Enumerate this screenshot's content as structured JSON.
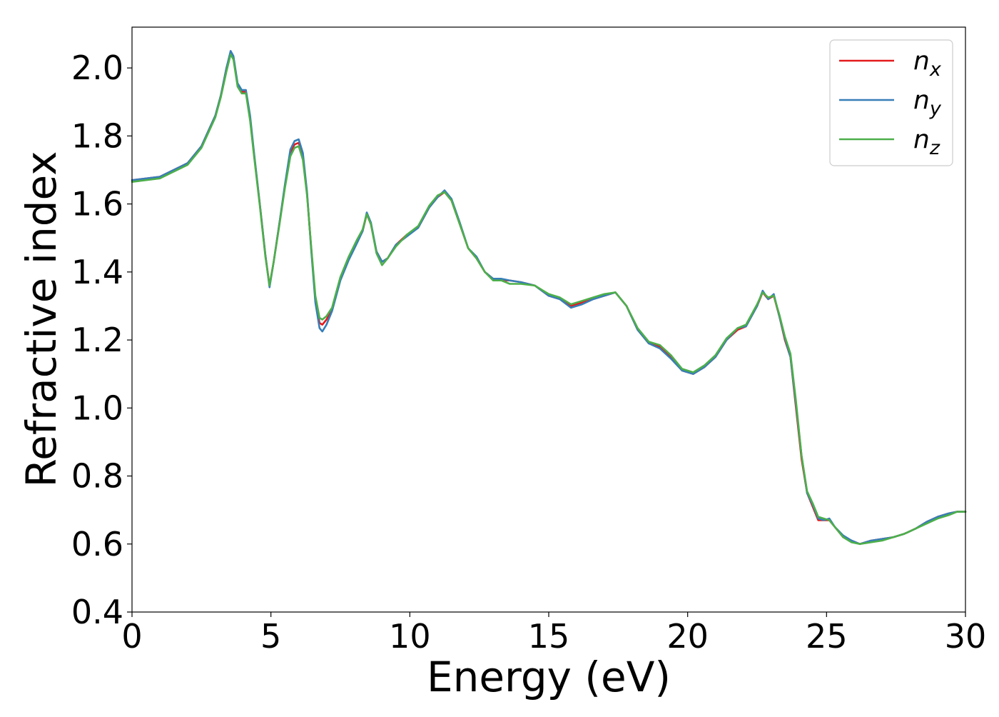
{
  "chart_data": {
    "type": "line",
    "title": "",
    "xlabel": "Energy (eV)",
    "ylabel": "Refractive index",
    "xlim": [
      0,
      30
    ],
    "ylim": [
      0.4,
      2.12
    ],
    "xticks": [
      0,
      5,
      10,
      15,
      20,
      25,
      30
    ],
    "xtick_labels": [
      "0",
      "5",
      "10",
      "15",
      "20",
      "25",
      "30"
    ],
    "yticks": [
      0.4,
      0.6,
      0.8,
      1.0,
      1.2,
      1.4,
      1.6,
      1.8,
      2.0
    ],
    "ytick_labels": [
      "0.4",
      "0.6",
      "0.8",
      "1.0",
      "1.2",
      "1.4",
      "1.6",
      "1.8",
      "2.0"
    ],
    "grid": false,
    "legend_position": "top-right",
    "series": [
      {
        "name": "n_x",
        "label_base": "n",
        "label_sub": "x",
        "color": "#e41a1c",
        "x": [
          0,
          1,
          2,
          2.5,
          3,
          3.2,
          3.4,
          3.55,
          3.65,
          3.8,
          3.95,
          4.1,
          4.25,
          4.4,
          4.6,
          4.8,
          4.95,
          5.1,
          5.3,
          5.5,
          5.7,
          5.85,
          6.0,
          6.15,
          6.3,
          6.45,
          6.6,
          6.75,
          6.85,
          7.0,
          7.2,
          7.5,
          7.8,
          8.1,
          8.3,
          8.45,
          8.6,
          8.8,
          9.0,
          9.2,
          9.5,
          9.9,
          10.3,
          10.7,
          11.0,
          11.25,
          11.5,
          11.8,
          12.1,
          12.4,
          12.7,
          13.0,
          13.3,
          13.6,
          14.0,
          14.5,
          15.0,
          15.4,
          15.8,
          16.2,
          16.6,
          17.0,
          17.4,
          17.8,
          18.2,
          18.6,
          19.0,
          19.4,
          19.8,
          20.2,
          20.6,
          21.0,
          21.4,
          21.8,
          22.1,
          22.3,
          22.5,
          22.7,
          22.9,
          23.1,
          23.3,
          23.5,
          23.7,
          23.9,
          24.1,
          24.3,
          24.5,
          24.7,
          24.9,
          25.1,
          25.3,
          25.6,
          25.9,
          26.2,
          26.6,
          27.0,
          27.4,
          27.8,
          28.2,
          28.6,
          29.0,
          29.4,
          29.7,
          30.0
        ],
        "y": [
          1.67,
          1.68,
          1.72,
          1.77,
          1.86,
          1.92,
          2.0,
          2.045,
          2.03,
          1.95,
          1.93,
          1.93,
          1.85,
          1.74,
          1.6,
          1.45,
          1.36,
          1.43,
          1.54,
          1.65,
          1.75,
          1.775,
          1.78,
          1.74,
          1.63,
          1.47,
          1.32,
          1.25,
          1.245,
          1.26,
          1.29,
          1.38,
          1.44,
          1.49,
          1.52,
          1.57,
          1.54,
          1.46,
          1.43,
          1.44,
          1.48,
          1.51,
          1.53,
          1.59,
          1.62,
          1.635,
          1.61,
          1.54,
          1.47,
          1.44,
          1.4,
          1.38,
          1.375,
          1.375,
          1.37,
          1.36,
          1.33,
          1.32,
          1.3,
          1.31,
          1.32,
          1.33,
          1.34,
          1.3,
          1.23,
          1.19,
          1.18,
          1.15,
          1.11,
          1.1,
          1.12,
          1.15,
          1.2,
          1.23,
          1.24,
          1.27,
          1.3,
          1.34,
          1.32,
          1.33,
          1.27,
          1.2,
          1.15,
          1.0,
          0.85,
          0.75,
          0.71,
          0.67,
          0.67,
          0.67,
          0.65,
          0.62,
          0.61,
          0.6,
          0.61,
          0.615,
          0.62,
          0.63,
          0.645,
          0.665,
          0.68,
          0.69,
          0.695,
          0.695
        ]
      },
      {
        "name": "n_y",
        "label_base": "n",
        "label_sub": "y",
        "color": "#377eb8",
        "x": [
          0,
          1,
          2,
          2.5,
          3,
          3.2,
          3.4,
          3.55,
          3.65,
          3.8,
          3.95,
          4.1,
          4.25,
          4.4,
          4.6,
          4.8,
          4.95,
          5.1,
          5.3,
          5.5,
          5.7,
          5.85,
          6.0,
          6.15,
          6.3,
          6.45,
          6.6,
          6.75,
          6.85,
          7.0,
          7.2,
          7.5,
          7.8,
          8.1,
          8.3,
          8.45,
          8.6,
          8.8,
          9.0,
          9.2,
          9.5,
          9.9,
          10.3,
          10.7,
          11.0,
          11.25,
          11.5,
          11.8,
          12.1,
          12.4,
          12.7,
          13.0,
          13.3,
          13.6,
          14.0,
          14.5,
          15.0,
          15.4,
          15.8,
          16.2,
          16.6,
          17.0,
          17.4,
          17.8,
          18.2,
          18.6,
          19.0,
          19.4,
          19.8,
          20.2,
          20.6,
          21.0,
          21.4,
          21.8,
          22.1,
          22.3,
          22.5,
          22.7,
          22.9,
          23.1,
          23.3,
          23.5,
          23.7,
          23.9,
          24.1,
          24.3,
          24.5,
          24.7,
          24.9,
          25.1,
          25.3,
          25.6,
          25.9,
          26.2,
          26.6,
          27.0,
          27.4,
          27.8,
          28.2,
          28.6,
          29.0,
          29.4,
          29.7,
          30.0
        ],
        "y": [
          1.67,
          1.68,
          1.72,
          1.77,
          1.86,
          1.92,
          2.0,
          2.05,
          2.035,
          1.955,
          1.935,
          1.935,
          1.86,
          1.745,
          1.6,
          1.45,
          1.355,
          1.43,
          1.54,
          1.655,
          1.76,
          1.785,
          1.79,
          1.75,
          1.635,
          1.465,
          1.31,
          1.235,
          1.225,
          1.245,
          1.285,
          1.375,
          1.435,
          1.485,
          1.52,
          1.575,
          1.545,
          1.46,
          1.43,
          1.44,
          1.48,
          1.505,
          1.53,
          1.59,
          1.62,
          1.64,
          1.615,
          1.545,
          1.47,
          1.445,
          1.4,
          1.38,
          1.38,
          1.375,
          1.37,
          1.36,
          1.33,
          1.32,
          1.295,
          1.305,
          1.32,
          1.33,
          1.34,
          1.3,
          1.23,
          1.19,
          1.175,
          1.145,
          1.11,
          1.1,
          1.12,
          1.15,
          1.2,
          1.235,
          1.24,
          1.27,
          1.3,
          1.345,
          1.32,
          1.335,
          1.27,
          1.205,
          1.15,
          1.01,
          0.86,
          0.75,
          0.715,
          0.675,
          0.67,
          0.675,
          0.65,
          0.625,
          0.61,
          0.6,
          0.61,
          0.615,
          0.62,
          0.63,
          0.645,
          0.665,
          0.68,
          0.69,
          0.695,
          0.695
        ]
      },
      {
        "name": "n_z",
        "label_base": "n",
        "label_sub": "z",
        "color": "#4daf4a",
        "x": [
          0,
          1,
          2,
          2.5,
          3,
          3.2,
          3.4,
          3.55,
          3.65,
          3.8,
          3.95,
          4.1,
          4.25,
          4.4,
          4.6,
          4.8,
          4.95,
          5.1,
          5.3,
          5.5,
          5.7,
          5.85,
          6.0,
          6.15,
          6.3,
          6.45,
          6.6,
          6.75,
          6.85,
          7.0,
          7.2,
          7.5,
          7.8,
          8.1,
          8.3,
          8.45,
          8.6,
          8.8,
          9.0,
          9.2,
          9.5,
          9.9,
          10.3,
          10.7,
          11.0,
          11.25,
          11.5,
          11.8,
          12.1,
          12.4,
          12.7,
          13.0,
          13.3,
          13.6,
          14.0,
          14.5,
          15.0,
          15.4,
          15.8,
          16.2,
          16.6,
          17.0,
          17.4,
          17.8,
          18.2,
          18.6,
          19.0,
          19.4,
          19.8,
          20.2,
          20.6,
          21.0,
          21.4,
          21.8,
          22.1,
          22.3,
          22.5,
          22.7,
          22.9,
          23.1,
          23.3,
          23.5,
          23.7,
          23.9,
          24.1,
          24.3,
          24.5,
          24.7,
          24.9,
          25.1,
          25.3,
          25.6,
          25.9,
          26.2,
          26.6,
          27.0,
          27.4,
          27.8,
          28.2,
          28.6,
          29.0,
          29.4,
          29.7,
          30.0
        ],
        "y": [
          1.665,
          1.675,
          1.715,
          1.765,
          1.855,
          1.915,
          1.99,
          2.04,
          2.025,
          1.945,
          1.925,
          1.925,
          1.845,
          1.735,
          1.595,
          1.445,
          1.36,
          1.43,
          1.535,
          1.645,
          1.74,
          1.765,
          1.77,
          1.73,
          1.625,
          1.475,
          1.33,
          1.265,
          1.26,
          1.27,
          1.295,
          1.385,
          1.445,
          1.495,
          1.525,
          1.57,
          1.54,
          1.455,
          1.42,
          1.44,
          1.475,
          1.51,
          1.535,
          1.595,
          1.625,
          1.635,
          1.61,
          1.54,
          1.47,
          1.44,
          1.4,
          1.375,
          1.375,
          1.365,
          1.365,
          1.36,
          1.335,
          1.325,
          1.305,
          1.315,
          1.325,
          1.335,
          1.34,
          1.3,
          1.235,
          1.195,
          1.185,
          1.155,
          1.115,
          1.105,
          1.125,
          1.155,
          1.205,
          1.235,
          1.245,
          1.275,
          1.305,
          1.34,
          1.325,
          1.33,
          1.275,
          1.21,
          1.16,
          1.02,
          0.86,
          0.755,
          0.72,
          0.68,
          0.675,
          0.67,
          0.65,
          0.62,
          0.605,
          0.6,
          0.605,
          0.61,
          0.62,
          0.63,
          0.645,
          0.66,
          0.675,
          0.685,
          0.695,
          0.695
        ]
      }
    ]
  }
}
